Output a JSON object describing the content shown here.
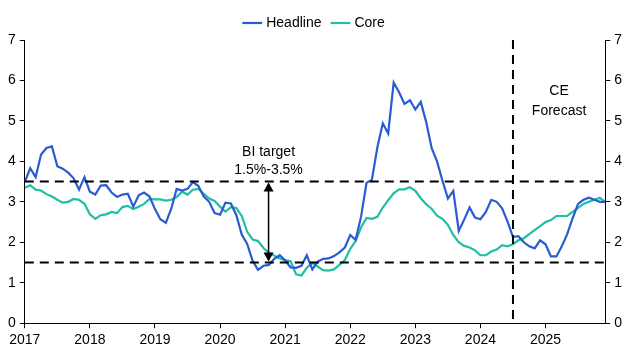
{
  "chart_data": {
    "type": "line",
    "x": [
      2017,
      2017.083,
      2017.167,
      2017.25,
      2017.333,
      2017.417,
      2017.5,
      2017.583,
      2017.667,
      2017.75,
      2017.833,
      2017.917,
      2018,
      2018.083,
      2018.167,
      2018.25,
      2018.333,
      2018.417,
      2018.5,
      2018.583,
      2018.667,
      2018.75,
      2018.833,
      2018.917,
      2019,
      2019.083,
      2019.167,
      2019.25,
      2019.333,
      2019.417,
      2019.5,
      2019.583,
      2019.667,
      2019.75,
      2019.833,
      2019.917,
      2020,
      2020.083,
      2020.167,
      2020.25,
      2020.333,
      2020.417,
      2020.5,
      2020.583,
      2020.667,
      2020.75,
      2020.833,
      2020.917,
      2021,
      2021.083,
      2021.167,
      2021.25,
      2021.333,
      2021.417,
      2021.5,
      2021.583,
      2021.667,
      2021.75,
      2021.833,
      2021.917,
      2022,
      2022.083,
      2022.167,
      2022.25,
      2022.333,
      2022.417,
      2022.5,
      2022.583,
      2022.667,
      2022.75,
      2022.833,
      2022.917,
      2023,
      2023.083,
      2023.167,
      2023.25,
      2023.333,
      2023.417,
      2023.5,
      2023.583,
      2023.667,
      2023.75,
      2023.833,
      2023.917,
      2024,
      2024.083,
      2024.167,
      2024.25,
      2024.333,
      2024.417,
      2024.5,
      2024.583,
      2024.667,
      2024.75,
      2024.833,
      2024.917,
      2025,
      2025.083,
      2025.167,
      2025.25,
      2025.333,
      2025.417,
      2025.5,
      2025.583,
      2025.667,
      2025.75,
      2025.833,
      2025.917
    ],
    "series": [
      {
        "name": "Headline",
        "color": "#2a5bd0",
        "line_style": "solid",
        "values": [
          3.49,
          3.83,
          3.61,
          4.17,
          4.33,
          4.37,
          3.88,
          3.82,
          3.72,
          3.58,
          3.3,
          3.61,
          3.25,
          3.18,
          3.4,
          3.41,
          3.23,
          3.12,
          3.18,
          3.2,
          2.88,
          3.16,
          3.23,
          3.13,
          2.82,
          2.57,
          2.48,
          2.83,
          3.32,
          3.28,
          3.32,
          3.49,
          3.39,
          3.13,
          3.0,
          2.72,
          2.68,
          2.98,
          2.96,
          2.67,
          2.19,
          1.96,
          1.54,
          1.32,
          1.42,
          1.44,
          1.59,
          1.68,
          1.55,
          1.38,
          1.37,
          1.42,
          1.68,
          1.33,
          1.52,
          1.59,
          1.6,
          1.66,
          1.75,
          1.87,
          2.18,
          2.06,
          2.64,
          3.47,
          3.55,
          4.35,
          4.94,
          4.69,
          5.95,
          5.71,
          5.42,
          5.51,
          5.28,
          5.47,
          4.97,
          4.33,
          4.0,
          3.52,
          3.08,
          3.27,
          2.28,
          2.56,
          2.86,
          2.61,
          2.57,
          2.75,
          3.05,
          3.0,
          2.84,
          2.51,
          2.13,
          2.15,
          2.0,
          1.9,
          1.85,
          2.05,
          1.95,
          1.65,
          1.65,
          1.9,
          2.2,
          2.6,
          2.95,
          3.05,
          3.1,
          3.05,
          3.0,
          3.0
        ]
      },
      {
        "name": "Core",
        "color": "#1fbfa3",
        "line_style": "solid",
        "values": [
          3.35,
          3.41,
          3.3,
          3.28,
          3.19,
          3.13,
          3.05,
          2.98,
          3.0,
          3.07,
          3.05,
          2.95,
          2.69,
          2.58,
          2.67,
          2.69,
          2.75,
          2.72,
          2.87,
          2.9,
          2.82,
          2.88,
          2.95,
          3.07,
          3.06,
          3.06,
          3.03,
          3.05,
          3.12,
          3.25,
          3.18,
          3.3,
          3.32,
          3.2,
          3.08,
          3.02,
          2.88,
          2.76,
          2.87,
          2.85,
          2.65,
          2.26,
          2.07,
          2.03,
          1.86,
          1.74,
          1.67,
          1.6,
          1.56,
          1.53,
          1.21,
          1.18,
          1.37,
          1.49,
          1.4,
          1.31,
          1.3,
          1.33,
          1.44,
          1.56,
          1.84,
          2.03,
          2.37,
          2.6,
          2.58,
          2.63,
          2.86,
          3.04,
          3.21,
          3.31,
          3.31,
          3.36,
          3.27,
          3.09,
          2.94,
          2.83,
          2.66,
          2.58,
          2.43,
          2.18,
          2.0,
          1.91,
          1.87,
          1.8,
          1.68,
          1.68,
          1.77,
          1.82,
          1.93,
          1.9,
          1.95,
          2.05,
          2.1,
          2.2,
          2.3,
          2.4,
          2.5,
          2.55,
          2.65,
          2.65,
          2.65,
          2.75,
          2.85,
          2.95,
          3.0,
          3.05,
          3.1,
          3.0
        ]
      }
    ],
    "xlim": [
      2017,
      2025.917
    ],
    "xticks": [
      2017,
      2018,
      2019,
      2020,
      2021,
      2022,
      2023,
      2024,
      2025
    ],
    "ylim": [
      0,
      7
    ],
    "yticks": [
      0,
      1,
      2,
      3,
      4,
      5,
      6,
      7
    ],
    "y2lim": [
      0,
      7
    ],
    "y2ticks": [
      0,
      1,
      2,
      3,
      4,
      5,
      6,
      7
    ],
    "grid": false,
    "legend": "top",
    "annotations": [
      {
        "type": "band",
        "label": [
          "BI target",
          "1.5%-3.5%"
        ],
        "y": [
          1.5,
          3.5
        ]
      },
      {
        "type": "vline",
        "label": [
          "CE",
          "Forecast"
        ],
        "x": 2024.5
      }
    ]
  }
}
